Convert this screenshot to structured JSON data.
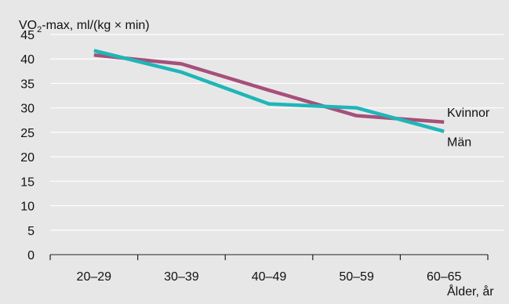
{
  "chart_data": {
    "type": "line",
    "ylabel": {
      "pre": "VO",
      "sub": "2",
      "post": "-max, ml/(kg × min)"
    },
    "xlabel": "Ålder, år",
    "categories": [
      "20–29",
      "30–39",
      "40–49",
      "50–59",
      "60–65"
    ],
    "ylim": [
      0,
      45
    ],
    "yticks": [
      0,
      5,
      10,
      15,
      20,
      25,
      30,
      35,
      40,
      45
    ],
    "grid": true,
    "series": [
      {
        "name": "Kvinnor",
        "values": [
          40.8,
          39.0,
          33.6,
          28.4,
          27.1
        ],
        "color": "#a5507a"
      },
      {
        "name": "Män",
        "values": [
          41.7,
          37.3,
          30.8,
          30.0,
          25.2
        ],
        "color": "#1fb6b8"
      }
    ]
  },
  "colors": {
    "background": "#e8e7e8",
    "grid": "#ffffff",
    "axis": "#222222"
  }
}
